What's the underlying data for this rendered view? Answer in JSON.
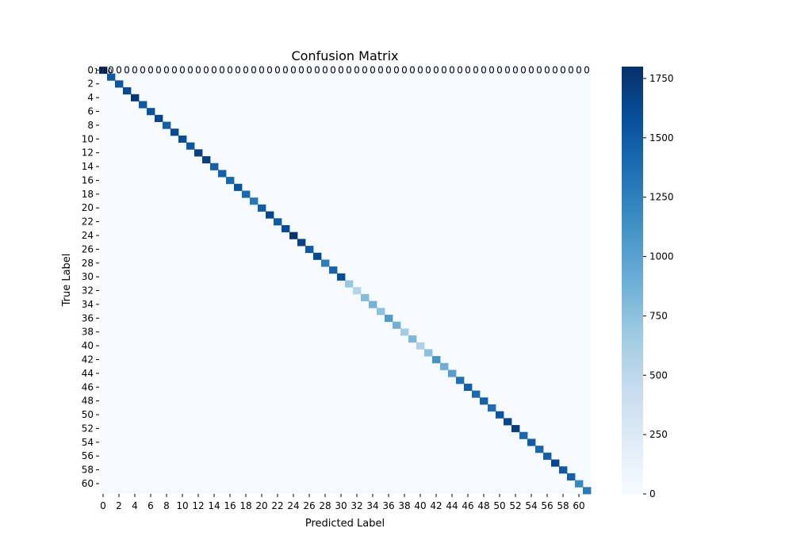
{
  "chart_data": {
    "type": "heatmap",
    "title": "Confusion Matrix",
    "xlabel": "Predicted Label",
    "ylabel": "True Label",
    "n_classes": 62,
    "tick_step": 2,
    "colormap": "Blues",
    "colormap_stops": [
      "#f7fbff",
      "#deebf7",
      "#c6dbef",
      "#9ecae1",
      "#6baed6",
      "#4292c6",
      "#2171b5",
      "#08519c",
      "#08306b"
    ],
    "vmin": 0,
    "vmax": 1800,
    "colorbar_ticks": [
      0,
      250,
      500,
      750,
      1000,
      1250,
      1500,
      1750
    ],
    "off_diagonal_value": 0,
    "diagonal": [
      1780,
      1510,
      1540,
      1620,
      1760,
      1520,
      1560,
      1650,
      1480,
      1620,
      1600,
      1540,
      1700,
      1690,
      1470,
      1460,
      1420,
      1560,
      1410,
      1300,
      1480,
      1650,
      1500,
      1600,
      1780,
      1680,
      1500,
      1620,
      1260,
      1440,
      1590,
      700,
      560,
      790,
      870,
      740,
      1060,
      880,
      640,
      820,
      580,
      760,
      1120,
      880,
      1020,
      1350,
      1480,
      1400,
      1460,
      1380,
      1560,
      1650,
      1720,
      1420,
      1500,
      1420,
      1470,
      1640,
      1520,
      1460,
      1190,
      1280
    ],
    "annotation_row": "0",
    "annotation_text": "0"
  }
}
